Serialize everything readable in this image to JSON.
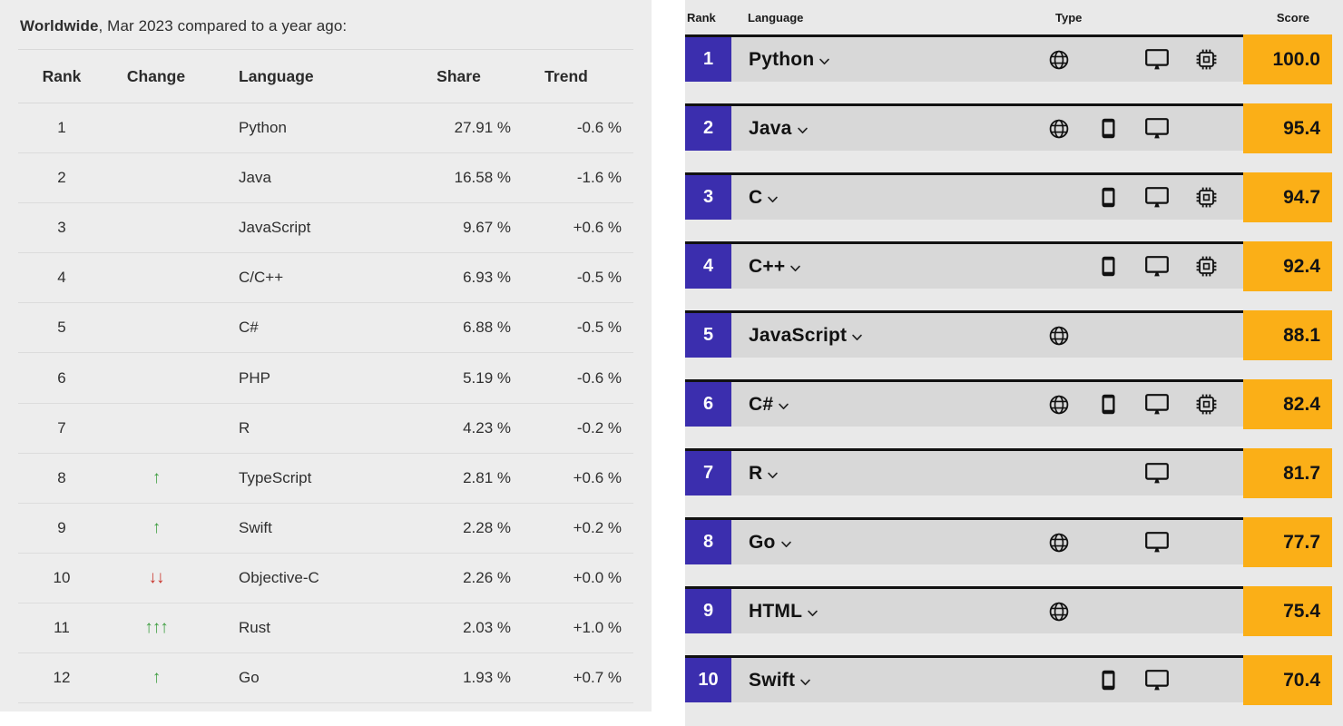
{
  "left_table": {
    "title": {
      "bold": "Worldwide",
      "rest": ", Mar 2023 compared to a year ago:"
    },
    "headers": {
      "rank": "Rank",
      "change": "Change",
      "language": "Language",
      "share": "Share",
      "trend": "Trend"
    },
    "rows": [
      {
        "rank": "1",
        "language": "Python",
        "share": "27.91 %",
        "trend": "-0.6 %",
        "change": null
      },
      {
        "rank": "2",
        "language": "Java",
        "share": "16.58 %",
        "trend": "-1.6 %",
        "change": null
      },
      {
        "rank": "3",
        "language": "JavaScript",
        "share": "9.67 %",
        "trend": "+0.6 %",
        "change": null
      },
      {
        "rank": "4",
        "language": "C/C++",
        "share": "6.93 %",
        "trend": "-0.5 %",
        "change": null
      },
      {
        "rank": "5",
        "language": "C#",
        "share": "6.88 %",
        "trend": "-0.5 %",
        "change": null
      },
      {
        "rank": "6",
        "language": "PHP",
        "share": "5.19 %",
        "trend": "-0.6 %",
        "change": null
      },
      {
        "rank": "7",
        "language": "R",
        "share": "4.23 %",
        "trend": "-0.2 %",
        "change": null
      },
      {
        "rank": "8",
        "language": "TypeScript",
        "share": "2.81 %",
        "trend": "+0.6 %",
        "change": {
          "dir": "up",
          "count": 1
        }
      },
      {
        "rank": "9",
        "language": "Swift",
        "share": "2.28 %",
        "trend": "+0.2 %",
        "change": {
          "dir": "up",
          "count": 1
        }
      },
      {
        "rank": "10",
        "language": "Objective-C",
        "share": "2.26 %",
        "trend": "+0.0 %",
        "change": {
          "dir": "down",
          "count": 2
        }
      },
      {
        "rank": "11",
        "language": "Rust",
        "share": "2.03 %",
        "trend": "+1.0 %",
        "change": {
          "dir": "up",
          "count": 3
        }
      },
      {
        "rank": "12",
        "language": "Go",
        "share": "1.93 %",
        "trend": "+0.7 %",
        "change": {
          "dir": "up",
          "count": 1
        }
      }
    ]
  },
  "right_table": {
    "headers": {
      "rank": "Rank",
      "language": "Language",
      "type": "Type",
      "score": "Score"
    },
    "type_slots": [
      "web",
      "mobile",
      "desktop",
      "embedded"
    ],
    "rows": [
      {
        "rank": "1",
        "language": "Python",
        "types": [
          "web",
          "desktop",
          "embedded"
        ],
        "score": "100.0"
      },
      {
        "rank": "2",
        "language": "Java",
        "types": [
          "web",
          "mobile",
          "desktop"
        ],
        "score": "95.4"
      },
      {
        "rank": "3",
        "language": "C",
        "types": [
          "mobile",
          "desktop",
          "embedded"
        ],
        "score": "94.7"
      },
      {
        "rank": "4",
        "language": "C++",
        "types": [
          "mobile",
          "desktop",
          "embedded"
        ],
        "score": "92.4"
      },
      {
        "rank": "5",
        "language": "JavaScript",
        "types": [
          "web"
        ],
        "score": "88.1"
      },
      {
        "rank": "6",
        "language": "C#",
        "types": [
          "web",
          "mobile",
          "desktop",
          "embedded"
        ],
        "score": "82.4"
      },
      {
        "rank": "7",
        "language": "R",
        "types": [
          "desktop"
        ],
        "score": "81.7"
      },
      {
        "rank": "8",
        "language": "Go",
        "types": [
          "web",
          "desktop"
        ],
        "score": "77.7"
      },
      {
        "rank": "9",
        "language": "HTML",
        "types": [
          "web"
        ],
        "score": "75.4"
      },
      {
        "rank": "10",
        "language": "Swift",
        "types": [
          "mobile",
          "desktop"
        ],
        "score": "70.4"
      }
    ]
  },
  "glyphs": {
    "up_arrow": "↑",
    "down_arrow": "↓"
  },
  "colors": {
    "left_panel_bg": "#ededed",
    "left_text": "#2f2f2f",
    "divider": "#d9d9d9",
    "arrow_green": "#3f9e41",
    "arrow_red": "#c9362e",
    "rank_badge_blue": "#3b2eae",
    "score_badge_amber": "#fbaf17",
    "row_gray": "#d8d8d8",
    "right_panel_bg": "#e9e9e9",
    "row_top_border": "#111111"
  }
}
